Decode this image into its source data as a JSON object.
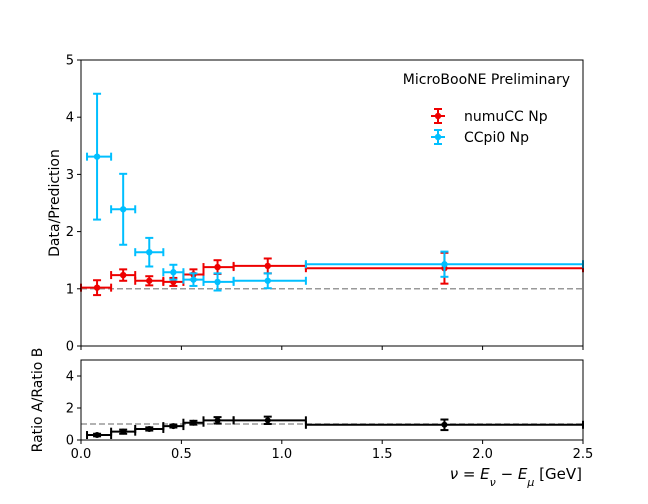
{
  "chart_data": [
    {
      "type": "scatter",
      "annotation": "MicroBooNE Preliminary",
      "ylabel": "Data/Prediction",
      "xlim": [
        0,
        2.5
      ],
      "ylim": [
        0,
        5
      ],
      "y_ticks": [
        "0",
        "1",
        "2",
        "3",
        "4",
        "5"
      ],
      "reference_line": 1.0,
      "legend_position": "upper right",
      "series": [
        {
          "name": "numuCC Np",
          "color": "#ee0000",
          "points": [
            {
              "x": 0.08,
              "xlo": 0.0,
              "xhi": 0.15,
              "y": 1.02,
              "yerr": 0.13
            },
            {
              "x": 0.21,
              "xlo": 0.15,
              "xhi": 0.27,
              "y": 1.24,
              "yerr": 0.1
            },
            {
              "x": 0.34,
              "xlo": 0.27,
              "xhi": 0.41,
              "y": 1.14,
              "yerr": 0.08
            },
            {
              "x": 0.46,
              "xlo": 0.41,
              "xhi": 0.51,
              "y": 1.12,
              "yerr": 0.07
            },
            {
              "x": 0.56,
              "xlo": 0.51,
              "xhi": 0.61,
              "y": 1.25,
              "yerr": 0.09
            },
            {
              "x": 0.68,
              "xlo": 0.61,
              "xhi": 0.76,
              "y": 1.38,
              "yerr": 0.12
            },
            {
              "x": 0.93,
              "xlo": 0.76,
              "xhi": 1.12,
              "y": 1.4,
              "yerr": 0.13
            },
            {
              "x": 1.81,
              "xlo": 1.12,
              "xhi": 2.5,
              "y": 1.36,
              "yerr": 0.27
            }
          ]
        },
        {
          "name": "CCpi0 Np",
          "color": "#00bfff",
          "points": [
            {
              "x": 0.08,
              "xlo": 0.03,
              "xhi": 0.15,
              "y": 3.31,
              "yerr": 1.1
            },
            {
              "x": 0.21,
              "xlo": 0.15,
              "xhi": 0.27,
              "y": 2.39,
              "yerr": 0.62
            },
            {
              "x": 0.34,
              "xlo": 0.27,
              "xhi": 0.41,
              "y": 1.64,
              "yerr": 0.25
            },
            {
              "x": 0.46,
              "xlo": 0.41,
              "xhi": 0.51,
              "y": 1.29,
              "yerr": 0.13
            },
            {
              "x": 0.56,
              "xlo": 0.51,
              "xhi": 0.61,
              "y": 1.16,
              "yerr": 0.11
            },
            {
              "x": 0.68,
              "xlo": 0.61,
              "xhi": 0.76,
              "y": 1.12,
              "yerr": 0.15
            },
            {
              "x": 0.93,
              "xlo": 0.76,
              "xhi": 1.12,
              "y": 1.14,
              "yerr": 0.13
            },
            {
              "x": 1.81,
              "xlo": 1.12,
              "xhi": 2.5,
              "y": 1.43,
              "yerr": 0.22
            }
          ]
        }
      ]
    },
    {
      "type": "scatter",
      "xlabel": "ν = E_ν − E_μ [GeV]",
      "ylabel": "Ratio A/Ratio B",
      "xlim": [
        0,
        2.5
      ],
      "ylim": [
        0,
        5
      ],
      "x_ticks": [
        "0.0",
        "0.5",
        "1.0",
        "1.5",
        "2.0",
        "2.5"
      ],
      "y_ticks": [
        "0",
        "2",
        "4"
      ],
      "reference_line": 1.0,
      "series": [
        {
          "color": "#000000",
          "points": [
            {
              "x": 0.08,
              "xlo": 0.03,
              "xhi": 0.15,
              "y": 0.31,
              "yerr": 0.08
            },
            {
              "x": 0.21,
              "xlo": 0.15,
              "xhi": 0.27,
              "y": 0.52,
              "yerr": 0.13
            },
            {
              "x": 0.34,
              "xlo": 0.27,
              "xhi": 0.41,
              "y": 0.69,
              "yerr": 0.1
            },
            {
              "x": 0.46,
              "xlo": 0.41,
              "xhi": 0.51,
              "y": 0.87,
              "yerr": 0.09
            },
            {
              "x": 0.56,
              "xlo": 0.51,
              "xhi": 0.61,
              "y": 1.08,
              "yerr": 0.12
            },
            {
              "x": 0.68,
              "xlo": 0.61,
              "xhi": 0.76,
              "y": 1.23,
              "yerr": 0.2
            },
            {
              "x": 0.93,
              "xlo": 0.76,
              "xhi": 1.12,
              "y": 1.23,
              "yerr": 0.23
            },
            {
              "x": 1.81,
              "xlo": 1.12,
              "xhi": 2.5,
              "y": 0.95,
              "yerr": 0.33
            }
          ]
        }
      ]
    }
  ]
}
